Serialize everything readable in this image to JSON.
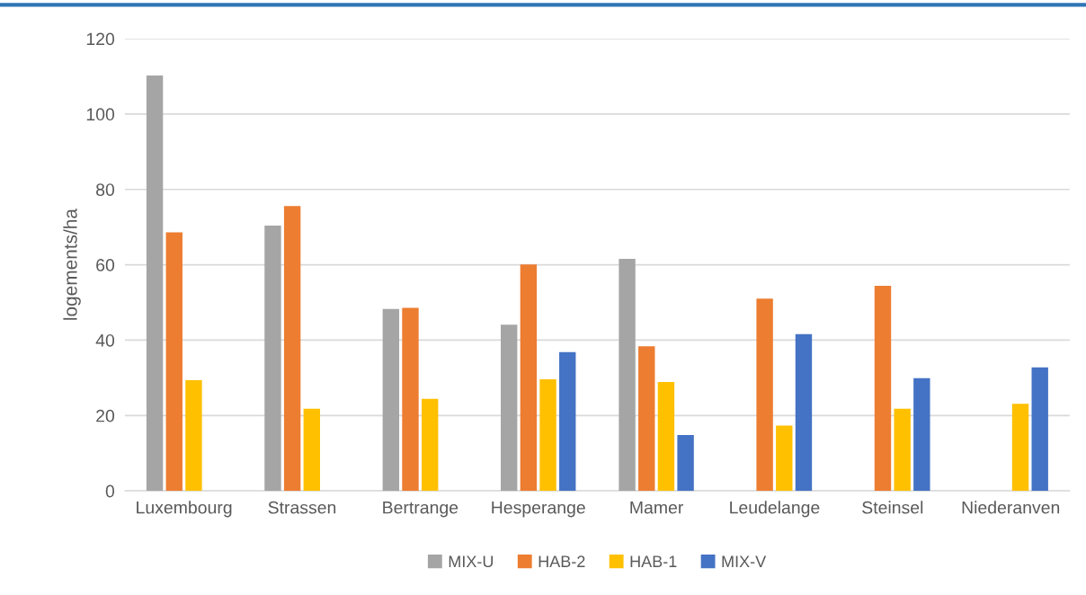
{
  "chart_data": {
    "type": "bar",
    "ylabel": "logements/ha",
    "categories": [
      "Luxembourg",
      "Strassen",
      "Bertrange",
      "Hesperange",
      "Mamer",
      "Leudelange",
      "Steinsel",
      "Niederanven"
    ],
    "series": [
      {
        "name": "MIX-U",
        "color": "#a5a5a5",
        "values": [
          110.2,
          70.4,
          48.3,
          44.1,
          61.6,
          null,
          null,
          null
        ]
      },
      {
        "name": "HAB-2",
        "color": "#ed7d31",
        "values": [
          68.6,
          75.6,
          48.6,
          60.1,
          38.4,
          51.0,
          54.4,
          null
        ]
      },
      {
        "name": "HAB-1",
        "color": "#ffc000",
        "values": [
          29.4,
          21.8,
          24.4,
          29.6,
          28.9,
          17.3,
          21.8,
          23.1
        ]
      },
      {
        "name": "MIX-V",
        "color": "#4472c4",
        "values": [
          null,
          null,
          null,
          36.8,
          14.8,
          41.6,
          29.9,
          32.8
        ]
      }
    ],
    "ylim": [
      0,
      120
    ],
    "yticks": [
      0,
      20,
      40,
      60,
      80,
      100,
      120
    ],
    "grid": "y",
    "legend": "bottom"
  }
}
